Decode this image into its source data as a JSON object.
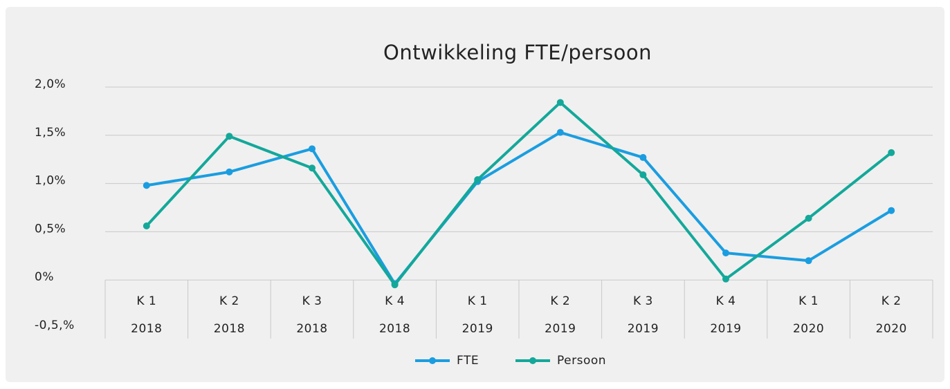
{
  "chart_data": {
    "type": "line",
    "title": "Ontwikkeling FTE/persoon",
    "categories": [
      [
        "K 1",
        "2018"
      ],
      [
        "K 2",
        "2018"
      ],
      [
        "K 3",
        "2018"
      ],
      [
        "K 4",
        "2018"
      ],
      [
        "K 1",
        "2019"
      ],
      [
        "K 2",
        "2019"
      ],
      [
        "K 3",
        "2019"
      ],
      [
        "K 4",
        "2019"
      ],
      [
        "K 1",
        "2020"
      ],
      [
        "K 2",
        "2020"
      ]
    ],
    "series": [
      {
        "name": "FTE",
        "color": "#1a9de0",
        "values": [
          0.98,
          1.12,
          1.36,
          -0.04,
          1.02,
          1.53,
          1.27,
          0.28,
          0.2,
          0.72
        ]
      },
      {
        "name": "Persoon",
        "color": "#13a89a",
        "values": [
          0.56,
          1.49,
          1.16,
          -0.05,
          1.04,
          1.84,
          1.09,
          0.01,
          0.64,
          1.32
        ]
      }
    ],
    "ylim": [
      -0.5,
      2.0
    ],
    "yticks": [
      {
        "value": -0.5,
        "label": "-0,5,%"
      },
      {
        "value": 0,
        "label": "0%"
      },
      {
        "value": 0.5,
        "label": "0,5%"
      },
      {
        "value": 1.0,
        "label": "1,0%"
      },
      {
        "value": 1.5,
        "label": "1,5%"
      },
      {
        "value": 2.0,
        "label": "2,0%"
      }
    ],
    "grid": true,
    "legend": "bottom"
  }
}
